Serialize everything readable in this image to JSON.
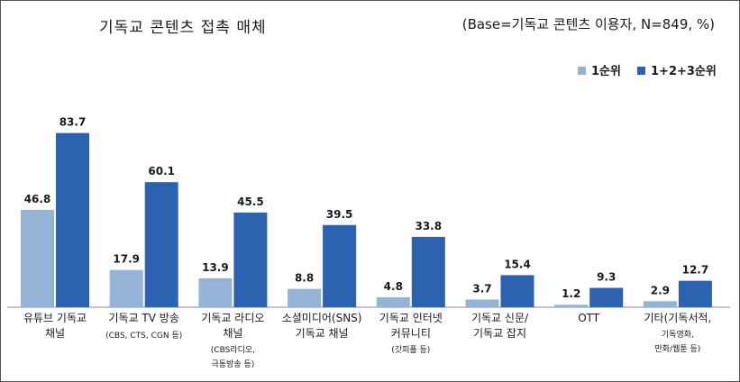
{
  "title": "기독교 콘텐츠 접촉 매체",
  "base_note": "(Base=기독교 콘텐츠 이용자, N=849, %)",
  "colors": {
    "series1": "#95b3d7",
    "series2": "#2c62b0",
    "axis": "#888888",
    "text": "#1a1a1a"
  },
  "chart_data": {
    "type": "bar",
    "title": "기독교 콘텐츠 접촉 매체",
    "categories": [
      {
        "lines": [
          "유튜브 기독교",
          "채널"
        ],
        "sub": []
      },
      {
        "lines": [
          "기독교 TV 방송"
        ],
        "sub": [
          "(CBS, CTS, CGN 등)"
        ]
      },
      {
        "lines": [
          "기독교 라디오",
          "채널"
        ],
        "sub": [
          "(CBS라디오,",
          "극동방송 등)"
        ]
      },
      {
        "lines": [
          "소셜미디어(SNS)",
          "기독교 채널"
        ],
        "sub": []
      },
      {
        "lines": [
          "기독교 인터넷",
          "커뮤니티"
        ],
        "sub": [
          "(갓피플 등)"
        ]
      },
      {
        "lines": [
          "기독교 신문/",
          "기독교 잡지"
        ],
        "sub": []
      },
      {
        "lines": [
          "OTT"
        ],
        "sub": []
      },
      {
        "lines": [
          "기타(기독서적,"
        ],
        "sub": [
          "기독영화,",
          "만화/웹툰 등)"
        ]
      }
    ],
    "series": [
      {
        "name": "1순위",
        "values": [
          46.8,
          17.9,
          13.9,
          8.8,
          4.8,
          3.7,
          1.2,
          2.9
        ]
      },
      {
        "name": "1+2+3순위",
        "values": [
          83.7,
          60.1,
          45.5,
          39.5,
          33.8,
          15.4,
          9.3,
          12.7
        ]
      }
    ],
    "ylim": [
      0,
      100
    ],
    "legend_position": "top-right",
    "grid": false
  }
}
